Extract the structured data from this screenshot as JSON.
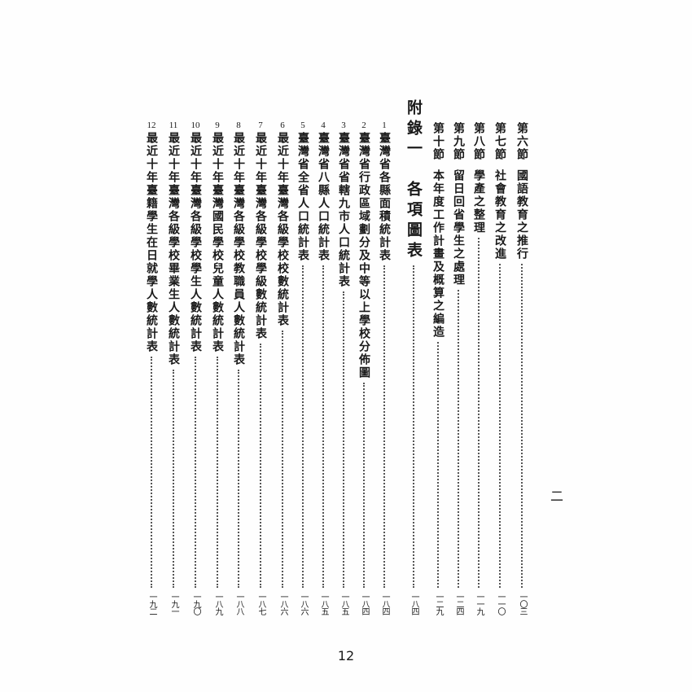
{
  "sections": [
    {
      "label": "第六節",
      "title": "國語教育之推行",
      "page": "一〇三"
    },
    {
      "label": "第七節",
      "title": "社會教育之改進",
      "page": "一一〇"
    },
    {
      "label": "第八節",
      "title": "學產之整理",
      "page": "一一九"
    },
    {
      "label": "第九節",
      "title": "留日回省學生之處理",
      "page": "一二四"
    },
    {
      "label": "第十節",
      "title": "本年度工作計畫及概算之編造",
      "page": "一二九"
    }
  ],
  "appendix": {
    "title": "附錄一　各項圖表",
    "page": "一八四"
  },
  "tables": [
    {
      "num": "1",
      "title": "臺灣省各縣面積統計表",
      "page": "一八四"
    },
    {
      "num": "2",
      "title": "臺灣省行政區域劃分及中等以上學校分佈圖",
      "page": "一八四"
    },
    {
      "num": "3",
      "title": "臺灣省省轄九市人口統計表",
      "page": "一八五"
    },
    {
      "num": "4",
      "title": "臺灣省八縣人口統計表",
      "page": "一八五"
    },
    {
      "num": "5",
      "title": "臺灣省全省人口統計表",
      "page": "一八六"
    },
    {
      "num": "6",
      "title": "最近十年臺灣各級學校校數統計表",
      "page": "一八六"
    },
    {
      "num": "7",
      "title": "最近十年臺灣各級學校學級數統計表",
      "page": "一八七"
    },
    {
      "num": "8",
      "title": "最近十年臺灣各級學校教職員人數統計表",
      "page": "一八八"
    },
    {
      "num": "9",
      "title": "最近十年臺灣國民學校兒童人數統計表",
      "page": "一八九"
    },
    {
      "num": "10",
      "title": "最近十年臺灣各級學校學生人數統計表",
      "page": "一九〇"
    },
    {
      "num": "11",
      "title": "最近十年臺灣各級學校畢業生人數統計表",
      "page": "一九一"
    },
    {
      "num": "12",
      "title": "最近十年臺籍學生在日就學人數統計表",
      "page": "一九二"
    }
  ],
  "side_mark": "二",
  "page_number": "12"
}
